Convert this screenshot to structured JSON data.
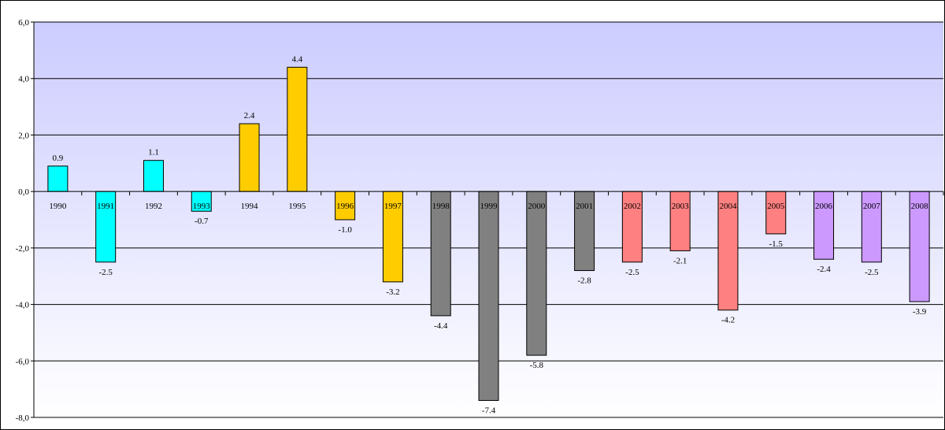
{
  "chart_data": {
    "type": "bar",
    "title": "",
    "xlabel": "",
    "ylabel": "",
    "ylim": [
      -8,
      6
    ],
    "y_ticks": [
      6,
      4,
      2,
      0,
      -2,
      -4,
      -6,
      -8
    ],
    "y_tick_labels": [
      "6,0",
      "4,0",
      "2,0",
      "0,0",
      "-2,0",
      "-4,0",
      "-6,0",
      "-8,0"
    ],
    "grid": true,
    "legend": "none",
    "categories": [
      "1990",
      "1991",
      "1992",
      "1993",
      "1994",
      "1995",
      "1996",
      "1997",
      "1998",
      "1999",
      "2000",
      "2001",
      "2002",
      "2003",
      "2004",
      "2005",
      "2006",
      "2007",
      "2008"
    ],
    "values": [
      0.9,
      -2.5,
      1.1,
      -0.7,
      2.4,
      4.4,
      -1.0,
      -3.2,
      -4.4,
      -7.4,
      -5.8,
      -2.8,
      -2.5,
      -2.1,
      -4.2,
      -1.5,
      -2.4,
      -2.5,
      -3.9
    ],
    "value_labels": [
      "0.9",
      "-2.5",
      "1.1",
      "-0.7",
      "2.4",
      "4.4",
      "-1.0",
      "-3.2",
      "-4.4",
      "-7.4",
      "-5.8",
      "-2.8",
      "-2.5",
      "-2.1",
      "-4.2",
      "-1.5",
      "-2.4",
      "-2.5",
      "-3.9"
    ],
    "bar_colors": [
      "#00FFFF",
      "#00FFFF",
      "#00FFFF",
      "#00FFFF",
      "#FFCC00",
      "#FFCC00",
      "#FFCC00",
      "#FFCC00",
      "#808080",
      "#808080",
      "#808080",
      "#808080",
      "#FF8080",
      "#FF8080",
      "#FF8080",
      "#FF8080",
      "#CC99FF",
      "#CC99FF",
      "#CC99FF"
    ],
    "plot_background": {
      "top_color": "#CCCCFF",
      "bottom_color": "#FFFFFF"
    }
  }
}
